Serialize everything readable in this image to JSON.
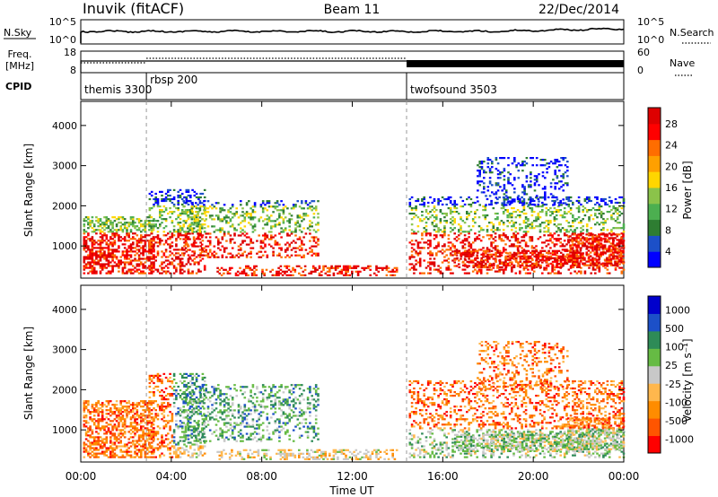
{
  "header": {
    "station": "Inuvik (fitACF)",
    "beam": "Beam 11",
    "date": "22/Dec/2014"
  },
  "chart_data": [
    {
      "type": "line",
      "panel": "nsky-nsearch",
      "left_label": "N.Sky",
      "right_label": "N.Search",
      "left_ticks": [
        "10^5",
        "10^0"
      ],
      "right_ticks": [
        "10^5",
        "10^0"
      ],
      "legend_style": "dotted"
    },
    {
      "type": "line",
      "panel": "freq-nave",
      "left_label_line1": "Freq.",
      "left_label_line2": "[MHz]",
      "left_ticks": [
        "18",
        "8"
      ],
      "right_label": "Nave",
      "right_ticks": [
        "60",
        "0"
      ],
      "legend_style": "dotted"
    },
    {
      "type": "table",
      "panel": "cpid",
      "label": "CPID",
      "segments": [
        {
          "name": "themis 3300",
          "start_h": 0.0,
          "end_h": 2.9
        },
        {
          "name": "rbsp 200",
          "start_h": 2.9,
          "end_h": 14.4
        },
        {
          "name": "twofsound 3503",
          "start_h": 14.4,
          "end_h": 24.0
        }
      ]
    },
    {
      "type": "heatmap",
      "panel": "power",
      "ylabel": "Slant Range [km]",
      "yticks": [
        "4000",
        "3000",
        "2000",
        "1000"
      ],
      "colorbar_label": "Power [dB]",
      "colorbar_ticks": [
        "28",
        "24",
        "20",
        "16",
        "12",
        "8",
        "4"
      ],
      "colorbar_colors": [
        "#0000ff",
        "#1c50c8",
        "#2e7d32",
        "#4caf50",
        "#8bc34a",
        "#ffd600",
        "#ffa000",
        "#ff6d00",
        "#ff0000",
        "#dd0000"
      ]
    },
    {
      "type": "heatmap",
      "panel": "velocity",
      "ylabel": "Slant Range [km]",
      "yticks": [
        "4000",
        "3000",
        "2000",
        "1000"
      ],
      "colorbar_label": "Velocity [m s⁻¹]",
      "colorbar_ticks": [
        "1000",
        "500",
        "100",
        "25",
        "-25",
        "-100",
        "-500",
        "-1000"
      ],
      "colorbar_colors": [
        "#ff0000",
        "#ff5500",
        "#ff8c00",
        "#ffb74d",
        "#c8c8c8",
        "#66bb44",
        "#2e8b57",
        "#1c50c8",
        "#0000cc"
      ],
      "xticks": [
        "00:00",
        "04:00",
        "08:00",
        "12:00",
        "16:00",
        "20:00",
        "00:00"
      ],
      "xlabel": "Time UT"
    }
  ]
}
